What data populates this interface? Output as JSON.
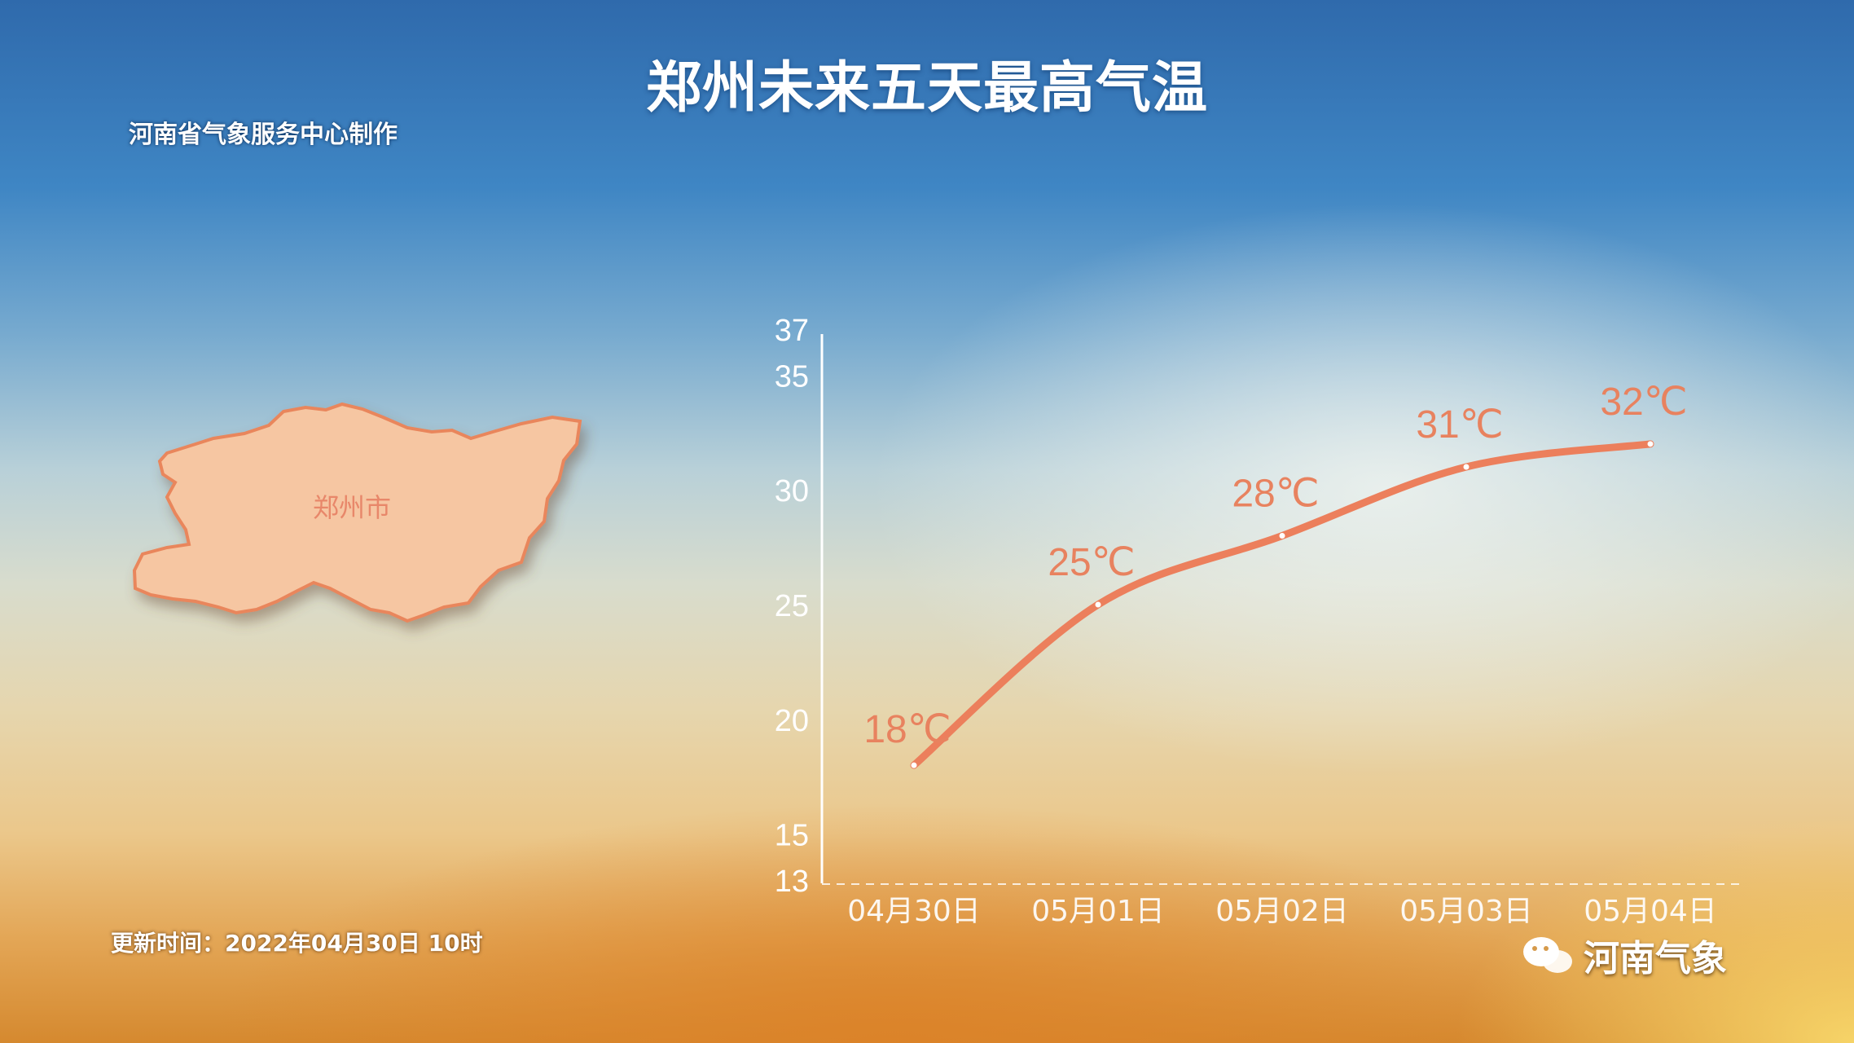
{
  "title": "郑州未来五天最高气温",
  "producer": "河南省气象服务中心制作",
  "update_time": "更新时间：2022年04月30日 10时",
  "map": {
    "region_label": "郑州市",
    "fill_color": "#f6c6a2",
    "edge_color": "#e9865b"
  },
  "watermark": {
    "text": "河南气象",
    "icon": "wechat-icon"
  },
  "colors": {
    "line": "#ec7f5c",
    "label": "#e8825f",
    "axis": "#ffffff"
  },
  "chart_data": {
    "type": "line",
    "title": "郑州未来五天最高气温",
    "categories": [
      "04月30日",
      "05月01日",
      "05月02日",
      "05月03日",
      "05月04日"
    ],
    "values": [
      18,
      25,
      28,
      31,
      32
    ],
    "data_labels": [
      "18℃",
      "25℃",
      "28℃",
      "31℃",
      "32℃"
    ],
    "y_ticks": [
      13,
      15,
      20,
      25,
      30,
      35,
      37
    ],
    "ylim": [
      13,
      37
    ],
    "grid": false,
    "smooth": true
  }
}
